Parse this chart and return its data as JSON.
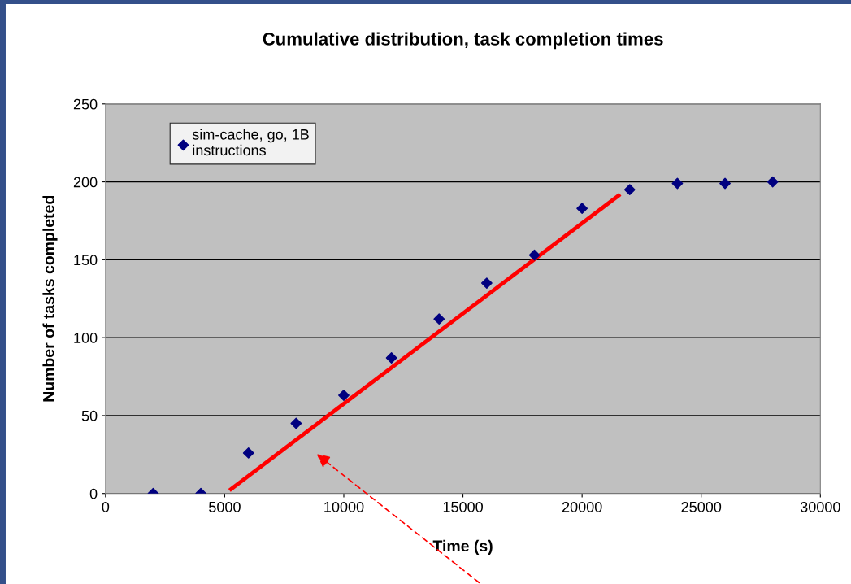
{
  "chart_data": {
    "type": "scatter",
    "title": "Cumulative distribution, task completion times",
    "xlabel": "Time (s)",
    "ylabel": "Number of tasks completed",
    "series": [
      {
        "name": "sim-cache, go, 1B\ninstructions",
        "marker": "diamond",
        "color": "#000080",
        "x": [
          2000,
          4000,
          6000,
          8000,
          10000,
          12000,
          14000,
          16000,
          18000,
          20000,
          22000,
          24000,
          26000,
          28000
        ],
        "values": [
          0,
          0,
          26,
          45,
          63,
          87,
          112,
          135,
          153,
          183,
          195,
          199,
          199,
          200
        ]
      },
      {
        "type": "line",
        "color": "#ff0000",
        "x": [
          5200,
          21600
        ],
        "values": [
          2,
          192
        ],
        "marker": "none"
      }
    ],
    "xlim": [
      0,
      30000
    ],
    "xticks": [
      0,
      5000,
      10000,
      15000,
      20000,
      25000,
      30000
    ],
    "ylim": [
      0,
      250
    ],
    "yticks": [
      0,
      50,
      100,
      150,
      200,
      250
    ],
    "grid": "y",
    "legend": "top left"
  }
}
